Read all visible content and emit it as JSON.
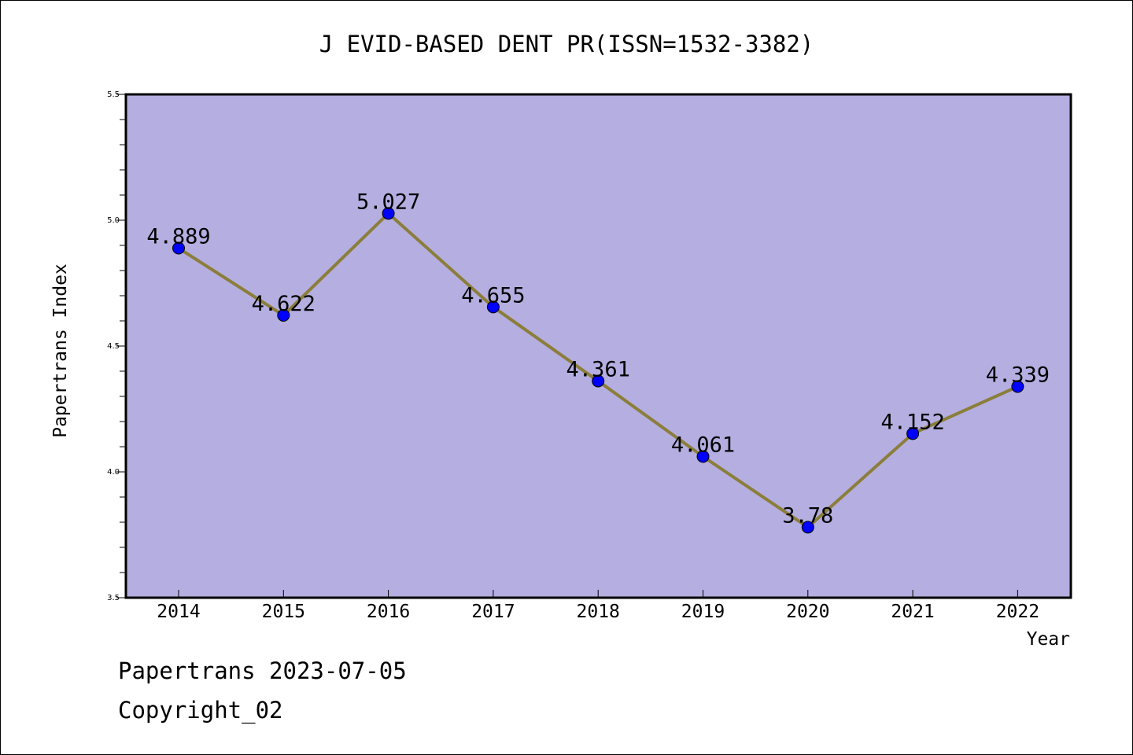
{
  "chart_data": {
    "type": "line",
    "title": "J EVID-BASED DENT PR(ISSN=1532-3382)",
    "xlabel": "Year",
    "ylabel": "Papertrans Index",
    "x": [
      "2014",
      "2015",
      "2016",
      "2017",
      "2018",
      "2019",
      "2020",
      "2021",
      "2022"
    ],
    "values": [
      4.889,
      4.622,
      5.027,
      4.655,
      4.361,
      4.061,
      3.78,
      4.152,
      4.339
    ],
    "data_labels": [
      "4.889",
      "4.622",
      "5.027",
      "4.655",
      "4.361",
      "4.061",
      "3.78",
      "4.152",
      "4.339"
    ],
    "ylim": [
      3.5,
      5.5
    ],
    "y_ticks": [
      "3.5",
      "4.0",
      "4.5",
      "5.0",
      "5.5"
    ],
    "grid": false,
    "colors": {
      "plot_background": "#b5aee1",
      "line": "#8b7e3a",
      "marker": "#0000ff"
    }
  },
  "footer": {
    "line1": "Papertrans 2023-07-05",
    "line2": "Copyright_02"
  }
}
